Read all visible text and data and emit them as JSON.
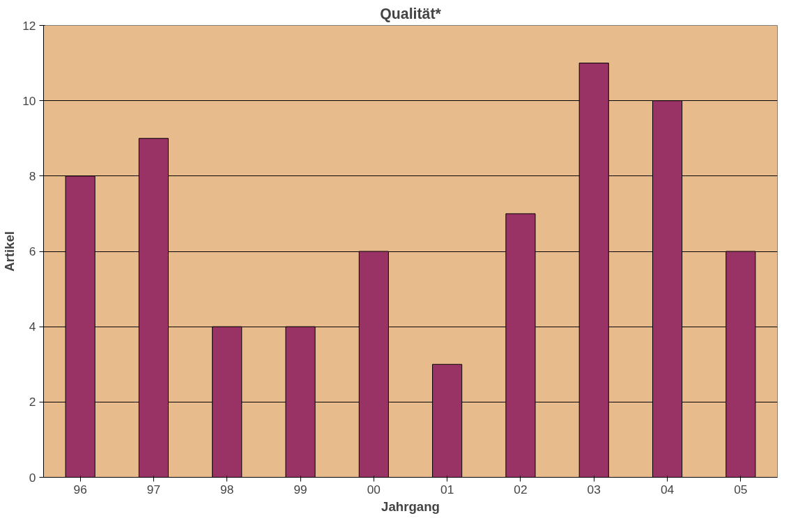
{
  "chart_data": {
    "type": "bar",
    "title": "Qualität*",
    "xlabel": "Jahrgang",
    "ylabel": "Artikel",
    "categories": [
      "96",
      "97",
      "98",
      "99",
      "00",
      "01",
      "02",
      "03",
      "04",
      "05"
    ],
    "values": [
      8,
      9,
      4,
      4,
      6,
      3,
      7,
      11,
      10,
      6
    ],
    "color": "#993366",
    "ylim": [
      0,
      12
    ],
    "yticks": [
      0,
      2,
      4,
      6,
      8,
      10,
      12
    ],
    "grid": "y"
  }
}
